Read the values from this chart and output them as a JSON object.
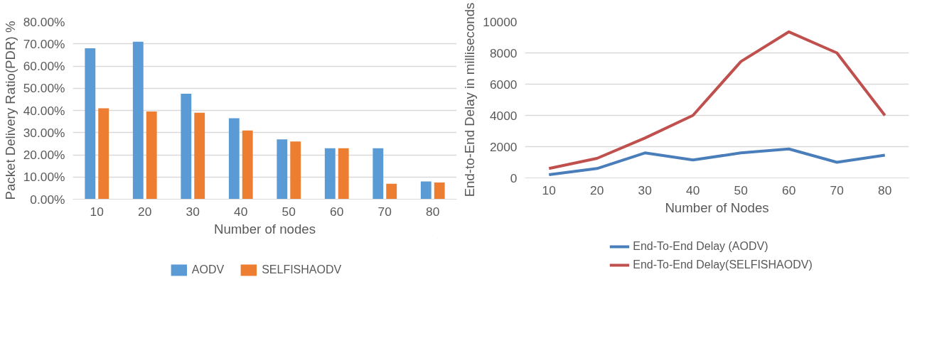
{
  "chart_data": [
    {
      "type": "bar",
      "xlabel": "Number of nodes",
      "ylabel": "Packet Delivery Ratio(PDR) %",
      "categories": [
        "10",
        "20",
        "30",
        "40",
        "50",
        "60",
        "70",
        "80"
      ],
      "series": [
        {
          "name": "AODV",
          "color": "#5b9bd5",
          "values": [
            68,
            71,
            47.5,
            36.5,
            27,
            23,
            23,
            8
          ]
        },
        {
          "name": "SELFISHAODV",
          "color": "#ed7d31",
          "values": [
            41,
            39.5,
            39,
            31,
            26,
            23,
            7,
            7.5
          ]
        }
      ],
      "ylim": [
        0,
        80
      ],
      "yticks": [
        {
          "value": 0,
          "label": "0.00%"
        },
        {
          "value": 10,
          "label": "10.00%"
        },
        {
          "value": 20,
          "label": "20.00%"
        },
        {
          "value": 30,
          "label": "30.00%"
        },
        {
          "value": 40,
          "label": "40.00%"
        },
        {
          "value": 50,
          "label": "50.00%"
        },
        {
          "value": 60,
          "label": "60.00%"
        },
        {
          "value": 70,
          "label": "70.00%"
        },
        {
          "value": 80,
          "label": "80.00%"
        }
      ],
      "grid": "y",
      "legend": "bottom"
    },
    {
      "type": "line",
      "xlabel": "Number of Nodes",
      "ylabel": "End-to-End Delay in milliseconds",
      "categories": [
        "10",
        "20",
        "30",
        "40",
        "50",
        "60",
        "70",
        "80"
      ],
      "series": [
        {
          "name": "End-To-End Delay (AODV)",
          "color": "#4a7ebb",
          "values": [
            200,
            600,
            1600,
            1150,
            1600,
            1850,
            1000,
            1450
          ]
        },
        {
          "name": "End-To-End Delay(SELFISHAODV)",
          "color": "#c0504d",
          "values": [
            600,
            1250,
            2550,
            4000,
            7450,
            9350,
            8000,
            4000
          ]
        }
      ],
      "ylim": [
        0,
        10000
      ],
      "yticks": [
        0,
        2000,
        4000,
        6000,
        8000,
        10000
      ],
      "grid": "y",
      "legend": "bottom",
      "marker": "none",
      "line_style": "solid"
    }
  ]
}
